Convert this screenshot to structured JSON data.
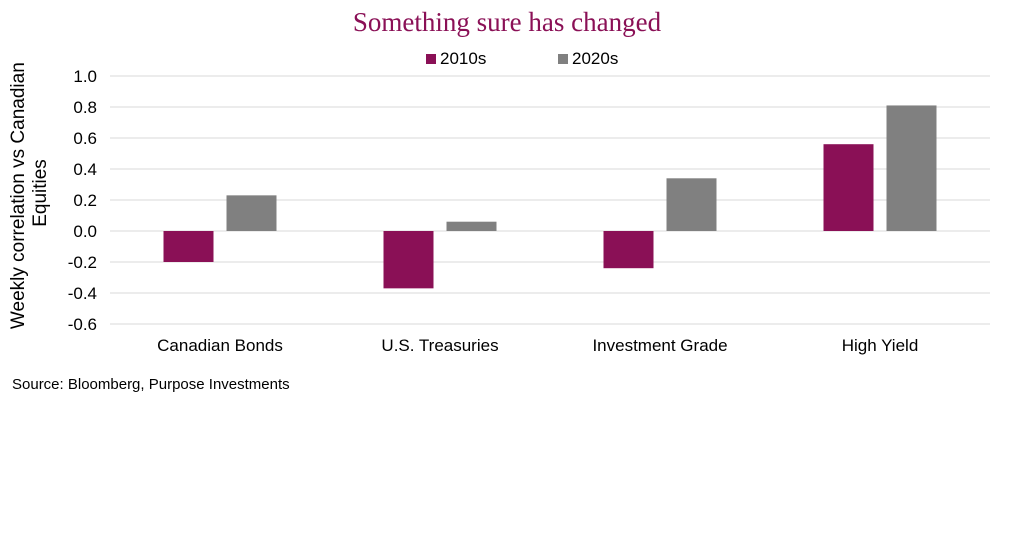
{
  "chart_data": {
    "type": "bar",
    "title": "Something sure has changed",
    "ylabel": "Weekly correlation vs Canadian Equities",
    "ylabel_lines": [
      "Weekly correlation vs Canadian",
      "Equities"
    ],
    "xlabel": "",
    "categories": [
      "Canadian Bonds",
      "U.S. Treasuries",
      "Investment Grade",
      "High Yield"
    ],
    "series": [
      {
        "name": "2010s",
        "color": "#8a1056",
        "values": [
          -0.2,
          -0.37,
          -0.24,
          0.56
        ]
      },
      {
        "name": "2020s",
        "color": "#808080",
        "values": [
          0.23,
          0.06,
          0.34,
          0.81
        ]
      }
    ],
    "ylim": [
      -0.6,
      1.0
    ],
    "yticks": [
      1.0,
      0.8,
      0.6,
      0.4,
      0.2,
      0.0,
      -0.2,
      -0.4,
      -0.6
    ],
    "ytick_labels": [
      "1.0",
      "0.8",
      "0.6",
      "0.4",
      "0.2",
      "0.0",
      "-0.2",
      "-0.4",
      "-0.6"
    ],
    "grid": true,
    "legend_position": "top-center"
  },
  "source": "Source: Bloomberg, Purpose Investments"
}
